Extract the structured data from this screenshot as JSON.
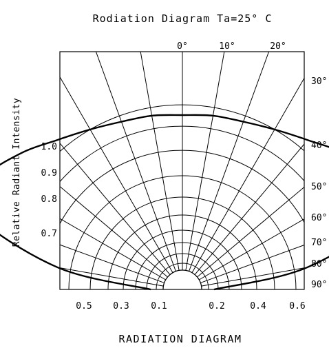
{
  "chart_data": {
    "type": "polar",
    "title": "Rodiation Diagram Ta=25° C",
    "ylabel": "Relative Radiant Intensity",
    "caption": "RADIATION DIAGRAM",
    "angle_labels_top": [
      "0°",
      "10°",
      "20°"
    ],
    "angle_labels_right": [
      "30°",
      "40°",
      "50°",
      "60°",
      "70°",
      "80°",
      "90°"
    ],
    "intensity_labels_left": [
      "1.0",
      "0.9",
      "0.8",
      "0.7"
    ],
    "bottom_labels": [
      "0.5",
      "0.3",
      "0.1",
      "0.2",
      "0.4",
      "0.6"
    ],
    "angle_step_deg": 10,
    "series": [
      {
        "angles_deg": [
          -90,
          -80,
          -70,
          -60,
          -50,
          -40,
          -30,
          -20,
          -10,
          0,
          10,
          20,
          30,
          40,
          50,
          60,
          70,
          80,
          90
        ],
        "values": [
          0.06,
          0.52,
          0.97,
          1.0,
          0.93,
          0.85,
          0.8,
          0.77,
          0.76,
          0.75,
          0.76,
          0.77,
          0.8,
          0.85,
          0.93,
          1.0,
          0.97,
          0.52,
          0.06
        ]
      }
    ]
  }
}
